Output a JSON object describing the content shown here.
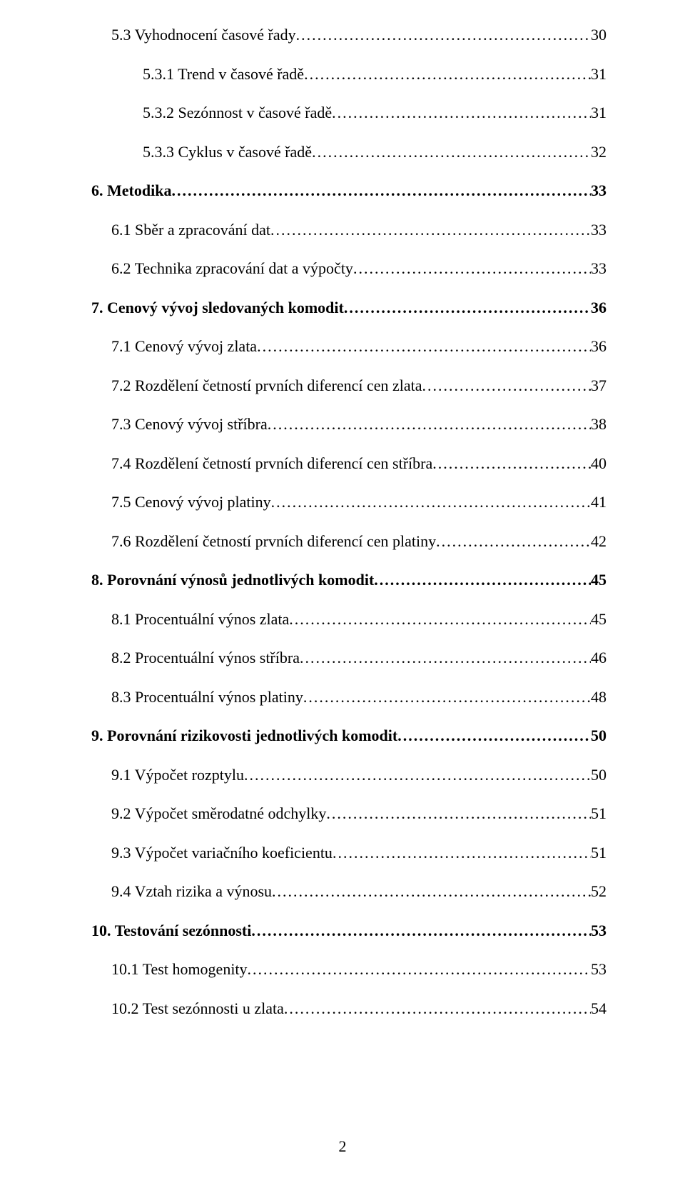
{
  "page_number": "2",
  "toc_entries": [
    {
      "level": 1,
      "bold": false,
      "label": "5.3 Vyhodnocení časové řady",
      "page": "30"
    },
    {
      "level": 2,
      "bold": false,
      "label": "5.3.1 Trend v časové řadě",
      "page": "31"
    },
    {
      "level": 2,
      "bold": false,
      "label": "5.3.2 Sezónnost v časové řadě",
      "page": "31"
    },
    {
      "level": 2,
      "bold": false,
      "label": "5.3.3 Cyklus v časové řadě",
      "page": "32"
    },
    {
      "level": 0,
      "bold": true,
      "label": "6. Metodika",
      "page": "33"
    },
    {
      "level": 1,
      "bold": false,
      "label": "6.1 Sběr a zpracování dat",
      "page": "33"
    },
    {
      "level": 1,
      "bold": false,
      "label": "6.2 Technika zpracování dat a výpočty",
      "page": "33"
    },
    {
      "level": 0,
      "bold": true,
      "label": "7. Cenový vývoj sledovaných komodit",
      "page": "36"
    },
    {
      "level": 1,
      "bold": false,
      "label": "7.1 Cenový vývoj zlata",
      "page": "36"
    },
    {
      "level": 1,
      "bold": false,
      "label": "7.2 Rozdělení četností prvních diferencí cen zlata",
      "page": "37"
    },
    {
      "level": 1,
      "bold": false,
      "label": "7.3 Cenový vývoj stříbra",
      "page": "38"
    },
    {
      "level": 1,
      "bold": false,
      "label": "7.4 Rozdělení četností prvních diferencí cen stříbra",
      "page": "40"
    },
    {
      "level": 1,
      "bold": false,
      "label": "7.5 Cenový vývoj platiny",
      "page": "41"
    },
    {
      "level": 1,
      "bold": false,
      "label": "7.6 Rozdělení četností prvních diferencí cen platiny",
      "page": "42"
    },
    {
      "level": 0,
      "bold": true,
      "label": "8. Porovnání výnosů jednotlivých komodit",
      "page": "45"
    },
    {
      "level": 1,
      "bold": false,
      "label": "8.1 Procentuální výnos zlata",
      "page": "45"
    },
    {
      "level": 1,
      "bold": false,
      "label": "8.2 Procentuální výnos stříbra",
      "page": "46"
    },
    {
      "level": 1,
      "bold": false,
      "label": "8.3 Procentuální výnos platiny",
      "page": "48"
    },
    {
      "level": 0,
      "bold": true,
      "label": "9. Porovnání rizikovosti jednotlivých komodit",
      "page": "50"
    },
    {
      "level": 1,
      "bold": false,
      "label": "9.1 Výpočet rozptylu",
      "page": "50"
    },
    {
      "level": 1,
      "bold": false,
      "label": "9.2 Výpočet směrodatné odchylky",
      "page": "51"
    },
    {
      "level": 1,
      "bold": false,
      "label": "9.3 Výpočet variačního koeficientu",
      "page": "51"
    },
    {
      "level": 1,
      "bold": false,
      "label": "9.4 Vztah rizika a výnosu",
      "page": "52"
    },
    {
      "level": 0,
      "bold": true,
      "label": "10. Testování sezónnosti",
      "page": "53"
    },
    {
      "level": 1,
      "bold": false,
      "label": "10.1 Test homogenity",
      "page": "53"
    },
    {
      "level": 1,
      "bold": false,
      "label": "10.2 Test sezónnosti u zlata",
      "page": "54"
    }
  ]
}
